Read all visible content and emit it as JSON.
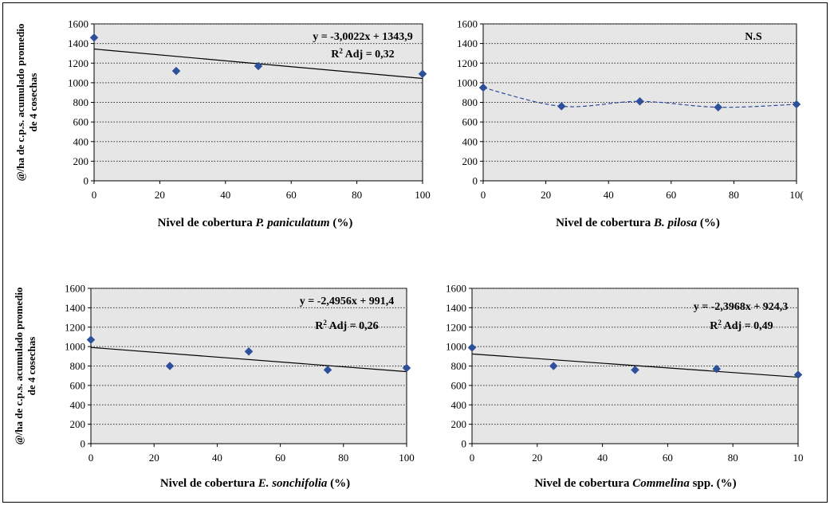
{
  "chart_data": [
    {
      "type": "scatter",
      "xlabel": "Nivel de cobertura",
      "xlabel_species": "P. paniculatum",
      "xlabel_suffix": " (%)",
      "ylabel_lines": [
        "@/ha de c.p.s.  acumulado promedio",
        "de 4 cosechas"
      ],
      "x_ticks": [
        "0",
        "20",
        "40",
        "60",
        "80",
        "100"
      ],
      "y_ticks": [
        "0",
        "200",
        "400",
        "600",
        "800",
        "1000",
        "1200",
        "1400",
        "1600"
      ],
      "xlim": [
        0,
        100
      ],
      "ylim": [
        0,
        1600
      ],
      "grid": true,
      "points": [
        {
          "x": 0,
          "y": 1460
        },
        {
          "x": 25,
          "y": 1120
        },
        {
          "x": 50,
          "y": 1170
        },
        {
          "x": 100,
          "y": 1090
        }
      ],
      "trend": {
        "style": "solid",
        "slope": -3.0022,
        "intercept": 1343.9
      },
      "annotations": [
        "y = -3,0022x + 1343,9",
        "R2 Adj = 0,32"
      ]
    },
    {
      "type": "scatter",
      "xlabel": "Nivel de cobertura",
      "xlabel_species": "B. pilosa",
      "xlabel_suffix": " (%)",
      "ylabel_lines": [],
      "x_ticks": [
        "0",
        "20",
        "40",
        "60",
        "80",
        "10("
      ],
      "y_ticks": [
        "0",
        "200",
        "400",
        "600",
        "800",
        "1000",
        "1200",
        "1400",
        "1600"
      ],
      "xlim": [
        0,
        100
      ],
      "ylim": [
        0,
        1600
      ],
      "grid": true,
      "points": [
        {
          "x": 0,
          "y": 950
        },
        {
          "x": 25,
          "y": 760
        },
        {
          "x": 50,
          "y": 810
        },
        {
          "x": 75,
          "y": 750
        },
        {
          "x": 100,
          "y": 780
        }
      ],
      "trend": {
        "style": "dashed-smooth"
      },
      "annotations": [
        "N.S"
      ]
    },
    {
      "type": "scatter",
      "xlabel": "Nivel de cobertura",
      "xlabel_species": "E. sonchifolia",
      "xlabel_suffix": " (%)",
      "ylabel_lines": [
        "@/ha de c.p.s.  acumulado promedio",
        "de 4 cosechas"
      ],
      "x_ticks": [
        "0",
        "20",
        "40",
        "60",
        "80",
        "100"
      ],
      "y_ticks": [
        "0",
        "200",
        "400",
        "600",
        "800",
        "1000",
        "1200",
        "1400",
        "1600"
      ],
      "xlim": [
        0,
        100
      ],
      "ylim": [
        0,
        1600
      ],
      "grid": true,
      "points": [
        {
          "x": 0,
          "y": 1070
        },
        {
          "x": 25,
          "y": 800
        },
        {
          "x": 50,
          "y": 950
        },
        {
          "x": 75,
          "y": 760
        },
        {
          "x": 100,
          "y": 780
        }
      ],
      "trend": {
        "style": "solid",
        "slope": -2.4956,
        "intercept": 991.4
      },
      "annotations": [
        "y = -2,4956x + 991,4",
        "R2 Adj = 0,26"
      ]
    },
    {
      "type": "scatter",
      "xlabel": "Nivel de cobertura",
      "xlabel_species": "Commelina",
      "xlabel_suffix": " spp. (%)",
      "ylabel_lines": [],
      "x_ticks": [
        "0",
        "20",
        "40",
        "60",
        "80",
        "10"
      ],
      "y_ticks": [
        "0",
        "200",
        "400",
        "600",
        "800",
        "1000",
        "1200",
        "1400",
        "1600"
      ],
      "xlim": [
        0,
        100
      ],
      "ylim": [
        0,
        1600
      ],
      "grid": true,
      "points": [
        {
          "x": 0,
          "y": 990
        },
        {
          "x": 25,
          "y": 800
        },
        {
          "x": 50,
          "y": 760
        },
        {
          "x": 75,
          "y": 770
        },
        {
          "x": 100,
          "y": 710
        }
      ],
      "trend": {
        "style": "solid",
        "slope": -2.3968,
        "intercept": 924.3
      },
      "annotations": [
        "y = -2,3968x + 924,3",
        "R2 Adj = 0,49"
      ]
    }
  ],
  "colors": {
    "plot_background": "#e6e6e6",
    "marker": "#2e4f9a",
    "trend_solid": "#000000",
    "trend_dashed": "#2e4f9a",
    "grid": "#333333"
  }
}
